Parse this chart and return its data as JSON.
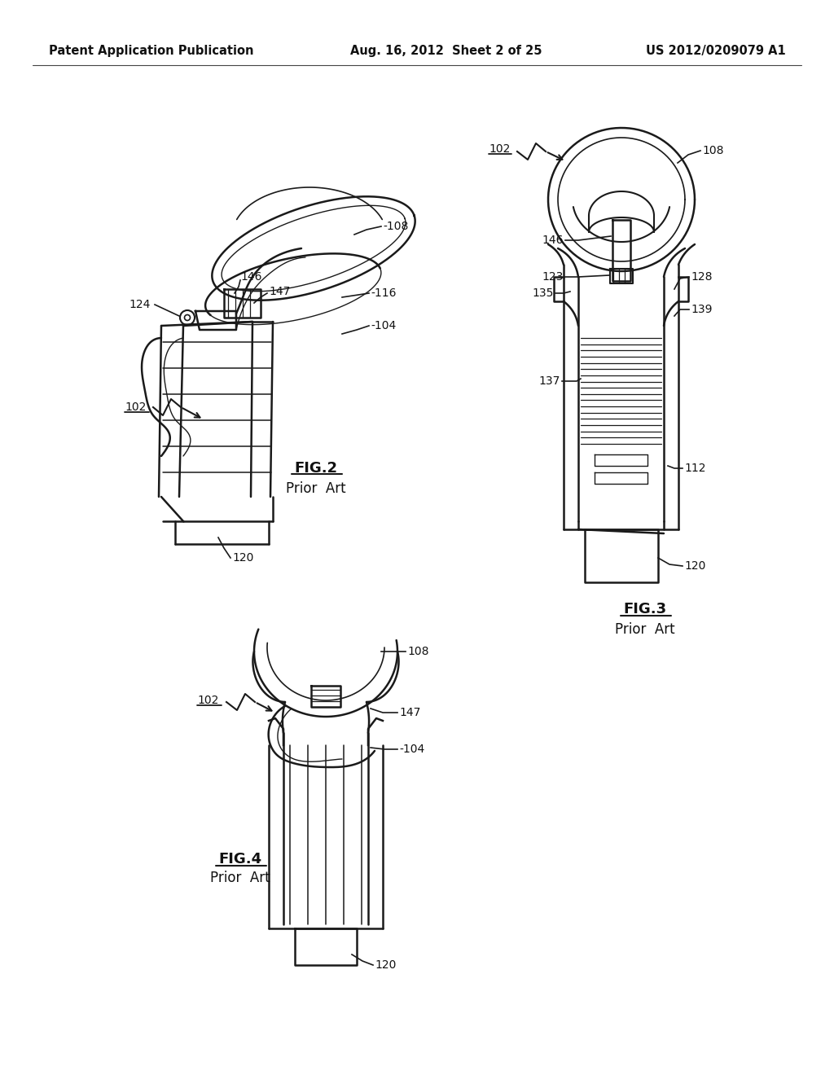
{
  "background_color": "#ffffff",
  "header_left": "Patent Application Publication",
  "header_center": "Aug. 16, 2012  Sheet 2 of 25",
  "header_right": "US 2012/0209079 A1",
  "line_color": "#1a1a1a",
  "text_color": "#111111",
  "fig2_title": "FIG.2",
  "fig2_sub": "Prior  Art",
  "fig3_title": "FIG.3",
  "fig3_sub": "Prior  Art",
  "fig4_title": "FIG.4",
  "fig4_sub": "Prior  Art"
}
